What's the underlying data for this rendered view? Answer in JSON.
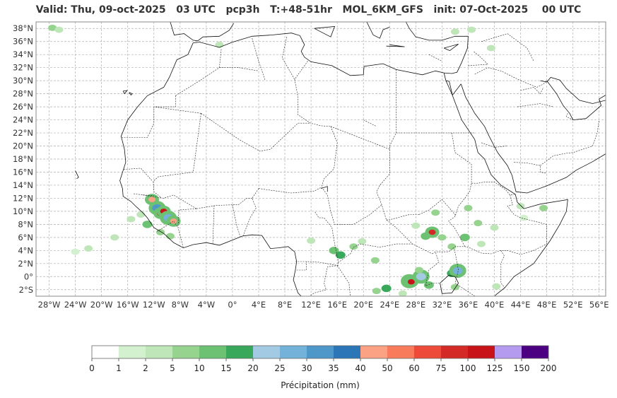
{
  "title": "Valid: Thu, 09-oct-2025   03 UTC   pcp3h   T:+48-51hr   MOL_6KM_GFS   init: 07-Oct-2025    00 UTC",
  "map": {
    "lon_range": [
      -30,
      57
    ],
    "lat_range": [
      -3,
      39
    ],
    "lat_ticks": [
      {
        "v": 38,
        "label": "38°N"
      },
      {
        "v": 36,
        "label": "36°N"
      },
      {
        "v": 34,
        "label": "34°N"
      },
      {
        "v": 32,
        "label": "32°N"
      },
      {
        "v": 30,
        "label": "30°N"
      },
      {
        "v": 28,
        "label": "28°N"
      },
      {
        "v": 26,
        "label": "26°N"
      },
      {
        "v": 24,
        "label": "24°N"
      },
      {
        "v": 22,
        "label": "22°N"
      },
      {
        "v": 20,
        "label": "20°N"
      },
      {
        "v": 18,
        "label": "18°N"
      },
      {
        "v": 16,
        "label": "16°N"
      },
      {
        "v": 14,
        "label": "14°N"
      },
      {
        "v": 12,
        "label": "12°N"
      },
      {
        "v": 10,
        "label": "10°N"
      },
      {
        "v": 8,
        "label": "8°N"
      },
      {
        "v": 6,
        "label": "6°N"
      },
      {
        "v": 4,
        "label": "4°N"
      },
      {
        "v": 2,
        "label": "2°N"
      },
      {
        "v": 0,
        "label": "0°"
      },
      {
        "v": -2,
        "label": "2°S"
      }
    ],
    "lon_ticks": [
      {
        "v": -28,
        "label": "28°W"
      },
      {
        "v": -24,
        "label": "24°W"
      },
      {
        "v": -20,
        "label": "20°W"
      },
      {
        "v": -16,
        "label": "16°W"
      },
      {
        "v": -12,
        "label": "12°W"
      },
      {
        "v": -8,
        "label": "8°W"
      },
      {
        "v": -4,
        "label": "4°W"
      },
      {
        "v": 0,
        "label": "0°"
      },
      {
        "v": 4,
        "label": "4°E"
      },
      {
        "v": 8,
        "label": "8°E"
      },
      {
        "v": 12,
        "label": "12°E"
      },
      {
        "v": 16,
        "label": "16°E"
      },
      {
        "v": 20,
        "label": "20°E"
      },
      {
        "v": 24,
        "label": "24°E"
      },
      {
        "v": 28,
        "label": "28°E"
      },
      {
        "v": 32,
        "label": "32°E"
      },
      {
        "v": 36,
        "label": "36°E"
      },
      {
        "v": 40,
        "label": "40°E"
      },
      {
        "v": 44,
        "label": "44°E"
      },
      {
        "v": 48,
        "label": "48°E"
      },
      {
        "v": 52,
        "label": "52°E"
      },
      {
        "v": 56,
        "label": "56°E"
      }
    ],
    "grid": true,
    "colors": {
      "grid": "#b0b0b0",
      "coast": "#111111",
      "border": "#222222",
      "frame": "#888888"
    }
  },
  "colorbar": {
    "label": "Précipitation (mm)",
    "bounds": [
      "0",
      "1",
      "2",
      "5",
      "10",
      "15",
      "20",
      "25",
      "30",
      "35",
      "40",
      "50",
      "60",
      "75",
      "100",
      "125",
      "150",
      "200"
    ],
    "colors": [
      "#ffffff",
      "#d3f1cf",
      "#bfe6b8",
      "#96d38e",
      "#6dc172",
      "#3aa85a",
      "#a2cae3",
      "#75b2da",
      "#4d97c9",
      "#2a76b6",
      "#fba184",
      "#f87b5c",
      "#ee4a3a",
      "#d32a26",
      "#c81318",
      "#b59bef",
      "#4b0082"
    ]
  },
  "precip_cells": [
    {
      "lon": -27.5,
      "lat": 38.1,
      "mm": 5
    },
    {
      "lon": -26.5,
      "lat": 37.8,
      "mm": 2
    },
    {
      "lon": -12.0,
      "lat": 11.5,
      "mm": 15
    },
    {
      "lon": -11.5,
      "lat": 10.5,
      "mm": 30
    },
    {
      "lon": -11.0,
      "lat": 9.7,
      "mm": 75
    },
    {
      "lon": -12.3,
      "lat": 11.8,
      "mm": 40
    },
    {
      "lon": -10.5,
      "lat": 10.0,
      "mm": 100
    },
    {
      "lon": -9.8,
      "lat": 9.0,
      "mm": 25
    },
    {
      "lon": -9.0,
      "lat": 8.5,
      "mm": 40
    },
    {
      "lon": -13.0,
      "lat": 8.0,
      "mm": 10
    },
    {
      "lon": -11.0,
      "lat": 6.8,
      "mm": 5
    },
    {
      "lon": -9.5,
      "lat": 6.2,
      "mm": 5
    },
    {
      "lon": -14.0,
      "lat": 9.5,
      "mm": 2
    },
    {
      "lon": -15.5,
      "lat": 8.8,
      "mm": 2
    },
    {
      "lon": -18.0,
      "lat": 6.0,
      "mm": 2
    },
    {
      "lon": -22.0,
      "lat": 4.3,
      "mm": 2
    },
    {
      "lon": -24.0,
      "lat": 3.8,
      "mm": 1
    },
    {
      "lon": -2.0,
      "lat": 35.5,
      "mm": 2
    },
    {
      "lon": 15.5,
      "lat": 4.0,
      "mm": 10
    },
    {
      "lon": 16.5,
      "lat": 3.3,
      "mm": 15
    },
    {
      "lon": 18.5,
      "lat": 4.6,
      "mm": 5
    },
    {
      "lon": 19.8,
      "lat": 5.4,
      "mm": 2
    },
    {
      "lon": 21.8,
      "lat": 2.5,
      "mm": 5
    },
    {
      "lon": 23.5,
      "lat": -1.8,
      "mm": 15
    },
    {
      "lon": 22.0,
      "lat": -2.2,
      "mm": 5
    },
    {
      "lon": 27.0,
      "lat": -0.7,
      "mm": 30
    },
    {
      "lon": 27.3,
      "lat": -0.8,
      "mm": 100
    },
    {
      "lon": 28.8,
      "lat": 0.0,
      "mm": 20
    },
    {
      "lon": 30.0,
      "lat": -1.3,
      "mm": 10
    },
    {
      "lon": 28.5,
      "lat": 1.0,
      "mm": 5
    },
    {
      "lon": 33.5,
      "lat": 0.5,
      "mm": 15
    },
    {
      "lon": 34.4,
      "lat": 0.9,
      "mm": 25
    },
    {
      "lon": 34.0,
      "lat": -1.6,
      "mm": 5
    },
    {
      "lon": 30.5,
      "lat": 6.8,
      "mm": 75
    },
    {
      "lon": 29.5,
      "lat": 6.2,
      "mm": 10
    },
    {
      "lon": 32.0,
      "lat": 6.0,
      "mm": 5
    },
    {
      "lon": 31.0,
      "lat": 9.8,
      "mm": 5
    },
    {
      "lon": 28.0,
      "lat": 7.8,
      "mm": 2
    },
    {
      "lon": 33.5,
      "lat": 4.6,
      "mm": 5
    },
    {
      "lon": 35.5,
      "lat": 6.0,
      "mm": 10
    },
    {
      "lon": 37.5,
      "lat": 8.2,
      "mm": 5
    },
    {
      "lon": 40.0,
      "lat": 7.5,
      "mm": 2
    },
    {
      "lon": 38.0,
      "lat": 5.0,
      "mm": 2
    },
    {
      "lon": 36.0,
      "lat": 10.5,
      "mm": 5
    },
    {
      "lon": 44.0,
      "lat": 10.8,
      "mm": 2
    },
    {
      "lon": 47.5,
      "lat": 10.5,
      "mm": 5
    },
    {
      "lon": 44.5,
      "lat": 9.0,
      "mm": 1
    },
    {
      "lon": 34.0,
      "lat": 37.5,
      "mm": 2
    },
    {
      "lon": 36.5,
      "lat": 37.8,
      "mm": 2
    },
    {
      "lon": 39.5,
      "lat": 35.0,
      "mm": 2
    },
    {
      "lon": 26.0,
      "lat": -2.6,
      "mm": 2
    },
    {
      "lon": 12.0,
      "lat": 5.5,
      "mm": 2
    },
    {
      "lon": 40.3,
      "lat": -1.5,
      "mm": 2
    }
  ]
}
